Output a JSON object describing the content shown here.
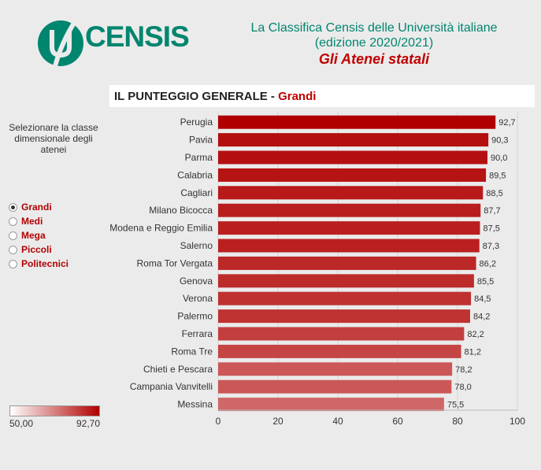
{
  "header": {
    "brand": "CENSIS",
    "title_line1": "La Classifica Censis delle Università italiane",
    "title_line2": "(edizione 2020/2021)",
    "subtitle": "Gli Atenei statali"
  },
  "panel": {
    "heading": "IL PUNTEGGIO GENERALE - ",
    "selected_class": "Grandi"
  },
  "sidebar": {
    "label": "Selezionare la classe dimensionale degli atenei",
    "options": [
      {
        "label": "Grandi",
        "checked": true
      },
      {
        "label": "Medi",
        "checked": false
      },
      {
        "label": "Mega",
        "checked": false
      },
      {
        "label": "Piccoli",
        "checked": false
      },
      {
        "label": "Politecnici",
        "checked": false
      }
    ]
  },
  "legend": {
    "min_label": "50,00",
    "max_label": "92,70",
    "color_low": "#ffffff",
    "color_high": "#b00000"
  },
  "chart_data": {
    "type": "bar",
    "orientation": "horizontal",
    "categories": [
      "Perugia",
      "Pavia",
      "Parma",
      "Calabria",
      "Cagliari",
      "Milano Bicocca",
      "Modena e Reggio Emilia",
      "Salerno",
      "Roma Tor Vergata",
      "Genova",
      "Verona",
      "Palermo",
      "Ferrara",
      "Roma Tre",
      "Chieti e Pescara",
      "Campania Vanvitelli",
      "Messina"
    ],
    "values": [
      92.7,
      90.3,
      90.0,
      89.5,
      88.5,
      87.7,
      87.5,
      87.3,
      86.2,
      85.5,
      84.5,
      84.2,
      82.2,
      81.2,
      78.2,
      78.0,
      75.5
    ],
    "value_labels": [
      "92,7",
      "90,3",
      "90,0",
      "89,5",
      "88,5",
      "87,7",
      "87,5",
      "87,3",
      "86,2",
      "85,5",
      "84,5",
      "84,2",
      "82,2",
      "81,2",
      "78,2",
      "78,0",
      "75,5"
    ],
    "xlim": [
      0,
      100
    ],
    "xticks": [
      0,
      20,
      40,
      60,
      80,
      100
    ],
    "color_range": [
      50.0,
      92.7
    ]
  }
}
